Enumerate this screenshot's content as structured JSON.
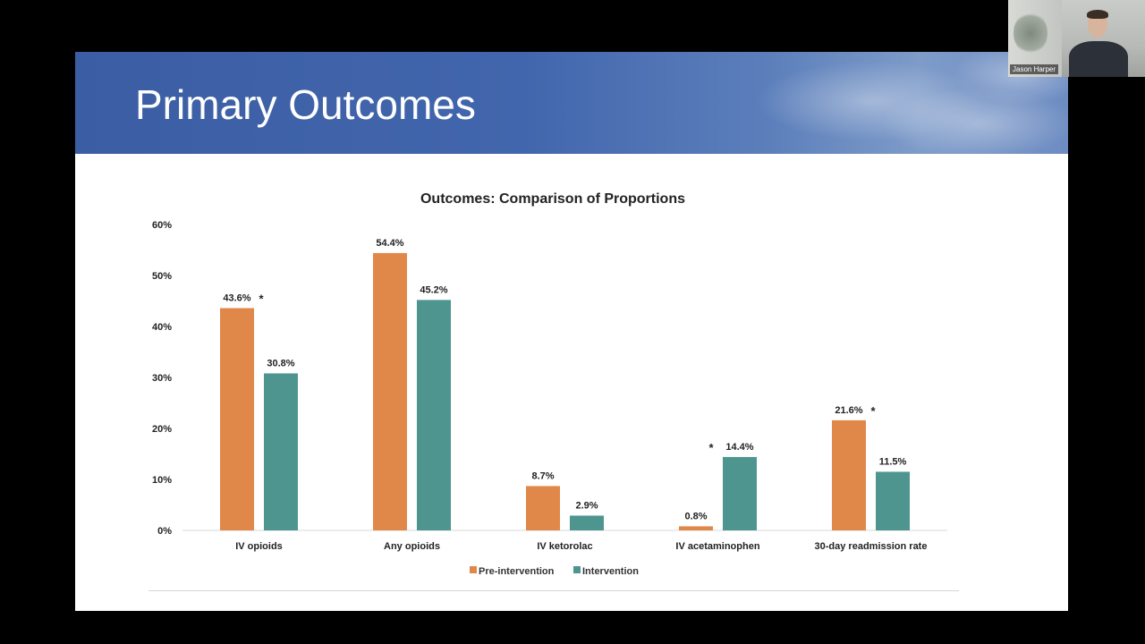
{
  "slide": {
    "title": "Primary Outcomes"
  },
  "webcam": {
    "participant_name": "Jason Harper"
  },
  "colors": {
    "pre_intervention": "#e0884a",
    "intervention": "#4e9590",
    "banner": "#4266ad"
  },
  "chart_data": {
    "type": "bar",
    "title": "Outcomes: Comparison of Proportions",
    "xlabel": "",
    "ylabel": "",
    "categories": [
      "IV opioids",
      "Any opioids",
      "IV ketorolac",
      "IV acetaminophen",
      "30-day readmission rate"
    ],
    "series": [
      {
        "name": "Pre-intervention",
        "values": [
          43.6,
          54.4,
          8.7,
          0.8,
          21.6
        ],
        "labels": [
          "43.6%",
          "54.4%",
          "8.7%",
          "0.8%",
          "21.6%"
        ],
        "significance": [
          "*",
          "",
          "",
          "",
          "*"
        ]
      },
      {
        "name": "Intervention",
        "values": [
          30.8,
          45.2,
          2.9,
          14.4,
          11.5
        ],
        "labels": [
          "30.8%",
          "45.2%",
          "2.9%",
          "14.4%",
          "11.5%"
        ],
        "significance": [
          "",
          "",
          "",
          "*",
          ""
        ]
      }
    ],
    "ylim": [
      0,
      60
    ],
    "yticks": [
      0,
      10,
      20,
      30,
      40,
      50,
      60
    ],
    "ytick_labels": [
      "0%",
      "10%",
      "20%",
      "30%",
      "40%",
      "50%",
      "60%"
    ],
    "grid": false,
    "legend": "bottom-center"
  }
}
